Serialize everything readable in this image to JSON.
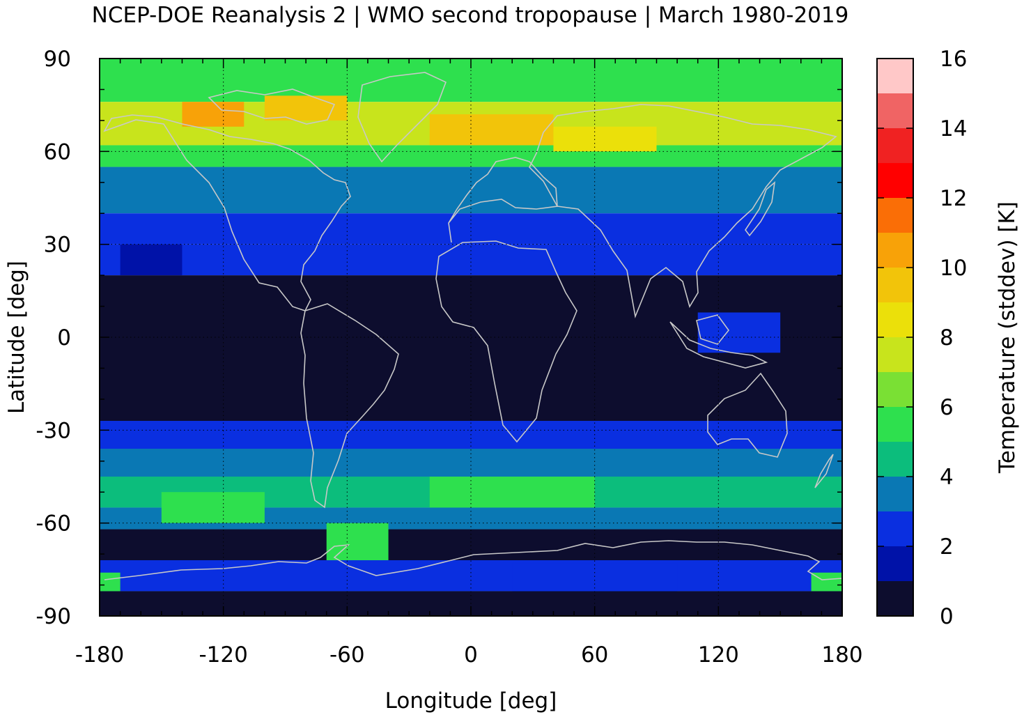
{
  "chart_data": {
    "type": "heatmap",
    "title": "NCEP-DOE Reanalysis 2 | WMO second tropopause | March 1980-2019",
    "xlabel": "Longitude [deg]",
    "ylabel": "Latitude [deg]",
    "colorbar_label": "Temperature (stddev) [K]",
    "xlim": [
      -180,
      180
    ],
    "ylim": [
      -90,
      90
    ],
    "xticks": [
      "-180",
      "-120",
      "-60",
      "0",
      "60",
      "120",
      "180"
    ],
    "yticks": [
      "90",
      "60",
      "30",
      "0",
      "-30",
      "-60",
      "-90"
    ],
    "xtick_values": [
      -180,
      -120,
      -60,
      0,
      60,
      120,
      180
    ],
    "ytick_values": [
      90,
      60,
      30,
      0,
      -30,
      -60,
      -90
    ],
    "colorbar_range": [
      0,
      16
    ],
    "colorbar_ticks": [
      "16",
      "14",
      "12",
      "10",
      "8",
      "6",
      "4",
      "2",
      "0"
    ],
    "colorbar_tick_values": [
      16,
      14,
      12,
      10,
      8,
      6,
      4,
      2,
      0
    ],
    "colorbar_colors": [
      "#0d0d2e",
      "#0012a8",
      "#0a2fe0",
      "#0a78b4",
      "#0cbd7c",
      "#2ee04e",
      "#7ae034",
      "#c8e41c",
      "#ebe00a",
      "#f2c40a",
      "#f8a208",
      "#fa6e06",
      "#ff0000",
      "#f02222",
      "#f06464",
      "#ffc8c8"
    ],
    "grid": "dotted",
    "coastlines": true,
    "zonal_bands": [
      {
        "lat_range": [
          76,
          90
        ],
        "value": 5.5
      },
      {
        "lat_range": [
          62,
          76
        ],
        "value": 7.8
      },
      {
        "lat_range": [
          55,
          62
        ],
        "value": 5.2
      },
      {
        "lat_range": [
          40,
          55
        ],
        "value": 3.5
      },
      {
        "lat_range": [
          30,
          40
        ],
        "value": 2.6
      },
      {
        "lat_range": [
          20,
          30
        ],
        "value": 2.2
      },
      {
        "lat_range": [
          -27,
          20
        ],
        "value": 0.3
      },
      {
        "lat_range": [
          -36,
          -27
        ],
        "value": 2.4
      },
      {
        "lat_range": [
          -45,
          -36
        ],
        "value": 3.4
      },
      {
        "lat_range": [
          -55,
          -45
        ],
        "value": 4.6
      },
      {
        "lat_range": [
          -62,
          -55
        ],
        "value": 3.5
      },
      {
        "lat_range": [
          -72,
          -62
        ],
        "value": 0.5
      },
      {
        "lat_range": [
          -82,
          -72
        ],
        "value": 2.2
      },
      {
        "lat_range": [
          -90,
          -82
        ],
        "value": 0.8
      }
    ],
    "features": [
      {
        "lon_range": [
          -140,
          -110
        ],
        "lat_range": [
          68,
          76
        ],
        "value": 10.5
      },
      {
        "lon_range": [
          -20,
          40
        ],
        "lat_range": [
          62,
          72
        ],
        "value": 9.2
      },
      {
        "lon_range": [
          40,
          90
        ],
        "lat_range": [
          60,
          68
        ],
        "value": 8.8
      },
      {
        "lon_range": [
          -100,
          -60
        ],
        "lat_range": [
          70,
          78
        ],
        "value": 9.0
      },
      {
        "lon_range": [
          -170,
          -140
        ],
        "lat_range": [
          20,
          30
        ],
        "value": 1.7
      },
      {
        "lon_range": [
          110,
          150
        ],
        "lat_range": [
          -5,
          8
        ],
        "value": 2.1
      },
      {
        "lon_range": [
          -70,
          -40
        ],
        "lat_range": [
          -72,
          -60
        ],
        "value": 5.5
      },
      {
        "lon_range": [
          20,
          100
        ],
        "lat_range": [
          -82,
          -73
        ],
        "value": 2.3
      },
      {
        "lon_range": [
          -180,
          -170
        ],
        "lat_range": [
          -82,
          -76
        ],
        "value": 5.6
      },
      {
        "lon_range": [
          165,
          180
        ],
        "lat_range": [
          -82,
          -76
        ],
        "value": 5.6
      },
      {
        "lon_range": [
          -20,
          60
        ],
        "lat_range": [
          -55,
          -45
        ],
        "value": 5.4
      },
      {
        "lon_range": [
          -150,
          -100
        ],
        "lat_range": [
          -60,
          -50
        ],
        "value": 5.0
      }
    ]
  }
}
